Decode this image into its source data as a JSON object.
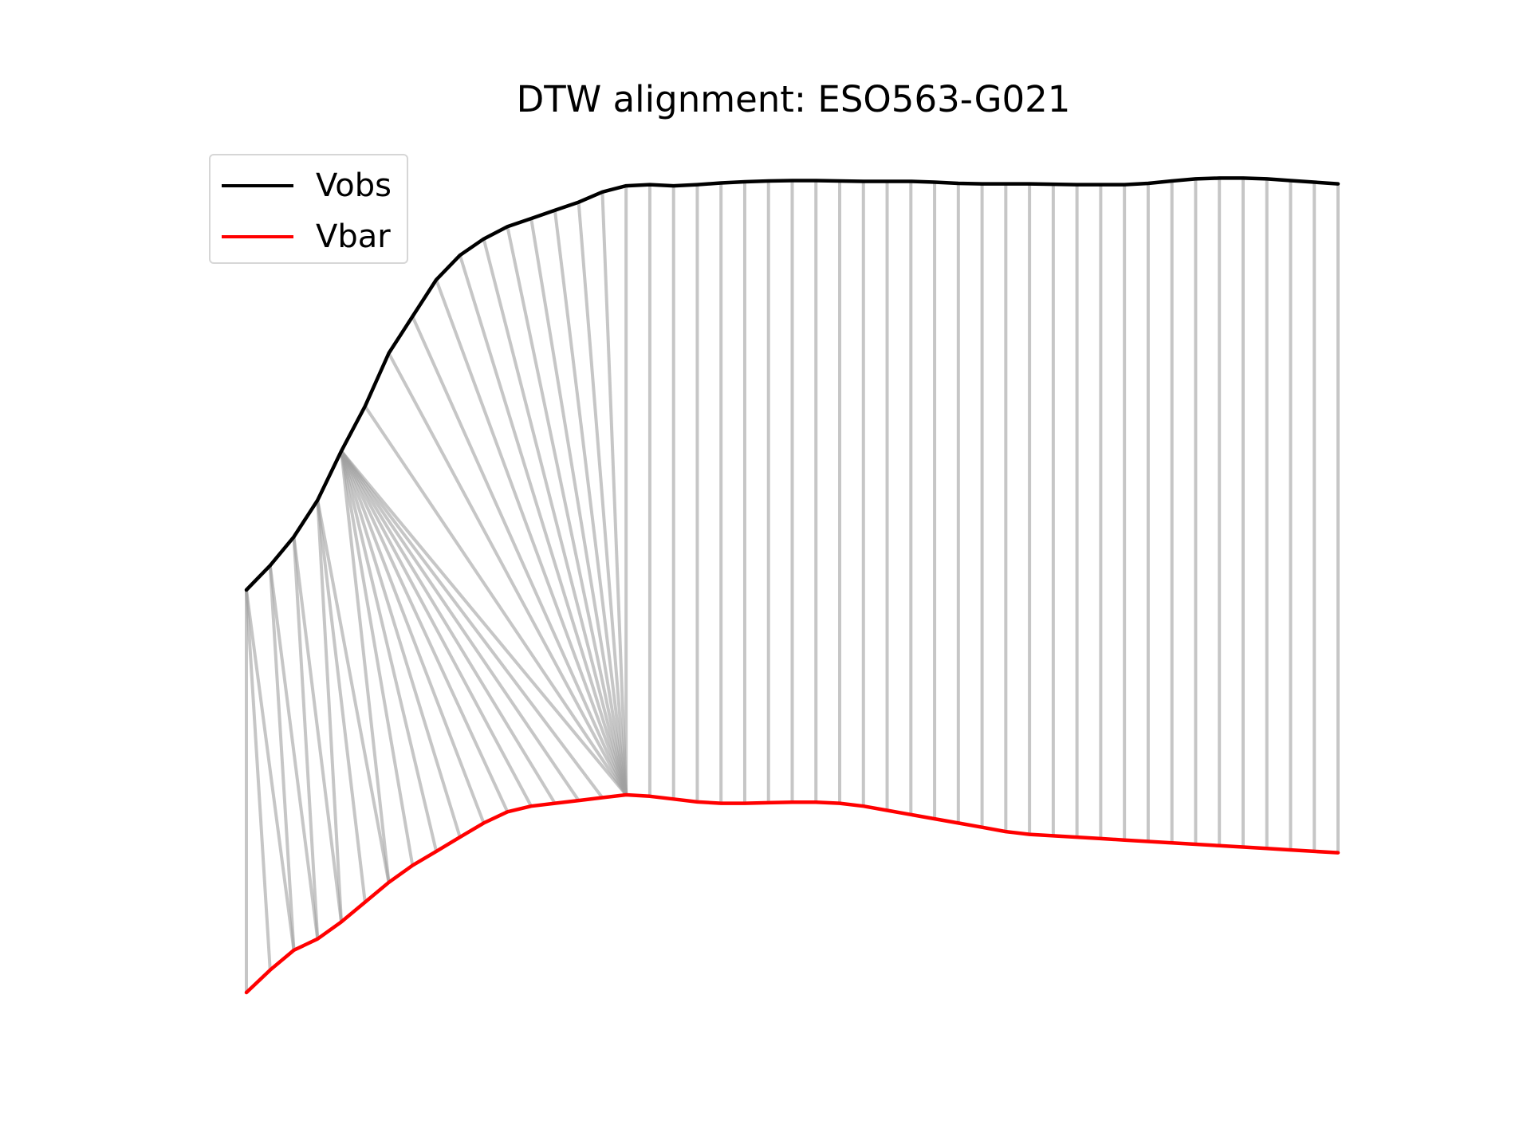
{
  "chart_data": {
    "type": "line",
    "title": "DTW alignment: ESO563-G021",
    "xlabel": "",
    "ylabel": "",
    "axes_visible": false,
    "grid": false,
    "legend_position": "top-left",
    "alignment_connector_color": "#a0a0a0",
    "series": [
      {
        "name": "Vobs",
        "color": "#000000",
        "values": [
          0.0,
          0.06,
          0.13,
          0.22,
          0.34,
          0.45,
          0.58,
          0.67,
          0.76,
          0.82,
          0.86,
          0.89,
          0.91,
          0.93,
          0.95,
          0.975,
          0.99,
          0.993,
          0.99,
          0.993,
          0.997,
          1.0,
          1.002,
          1.003,
          1.003,
          1.002,
          1.001,
          1.001,
          1.001,
          0.999,
          0.996,
          0.995,
          0.995,
          0.995,
          0.994,
          0.993,
          0.993,
          0.993,
          0.996,
          1.002,
          1.007,
          1.009,
          1.009,
          1.007,
          1.003,
          0.999,
          0.995
        ]
      },
      {
        "name": "Vbar",
        "color": "#ff0000",
        "values": [
          0.0,
          0.08,
          0.15,
          0.19,
          0.25,
          0.32,
          0.39,
          0.45,
          0.5,
          0.55,
          0.6,
          0.64,
          0.66,
          0.67,
          0.68,
          0.69,
          0.7,
          0.695,
          0.685,
          0.675,
          0.67,
          0.67,
          0.672,
          0.674,
          0.674,
          0.67,
          0.66,
          0.645,
          0.63,
          0.615,
          0.6,
          0.585,
          0.57,
          0.56,
          0.555,
          0.55,
          0.545,
          0.54,
          0.535,
          0.53,
          0.525,
          0.52,
          0.515,
          0.51,
          0.505,
          0.5,
          0.495
        ]
      }
    ],
    "alignment_pairs": [
      [
        0,
        0
      ],
      [
        0,
        1
      ],
      [
        0,
        2
      ],
      [
        1,
        2
      ],
      [
        1,
        3
      ],
      [
        2,
        3
      ],
      [
        2,
        4
      ],
      [
        3,
        4
      ],
      [
        3,
        5
      ],
      [
        3,
        6
      ],
      [
        4,
        6
      ],
      [
        4,
        7
      ],
      [
        4,
        8
      ],
      [
        4,
        9
      ],
      [
        4,
        10
      ],
      [
        4,
        11
      ],
      [
        4,
        12
      ],
      [
        4,
        13
      ],
      [
        4,
        14
      ],
      [
        4,
        15
      ],
      [
        4,
        16
      ],
      [
        5,
        16
      ],
      [
        6,
        16
      ],
      [
        7,
        16
      ],
      [
        8,
        16
      ],
      [
        9,
        16
      ],
      [
        10,
        16
      ],
      [
        11,
        16
      ],
      [
        12,
        16
      ],
      [
        13,
        16
      ],
      [
        14,
        16
      ],
      [
        15,
        16
      ],
      [
        16,
        16
      ],
      [
        17,
        17
      ],
      [
        18,
        18
      ],
      [
        19,
        19
      ],
      [
        20,
        20
      ],
      [
        21,
        21
      ],
      [
        22,
        22
      ],
      [
        23,
        23
      ],
      [
        24,
        24
      ],
      [
        25,
        25
      ],
      [
        26,
        26
      ],
      [
        27,
        27
      ],
      [
        28,
        28
      ],
      [
        29,
        29
      ],
      [
        30,
        30
      ],
      [
        31,
        31
      ],
      [
        32,
        32
      ],
      [
        33,
        33
      ],
      [
        34,
        34
      ],
      [
        35,
        35
      ],
      [
        36,
        36
      ],
      [
        37,
        37
      ],
      [
        38,
        38
      ],
      [
        39,
        39
      ],
      [
        40,
        40
      ],
      [
        41,
        41
      ],
      [
        42,
        42
      ],
      [
        43,
        43
      ],
      [
        44,
        44
      ],
      [
        45,
        45
      ],
      [
        46,
        46
      ]
    ]
  }
}
